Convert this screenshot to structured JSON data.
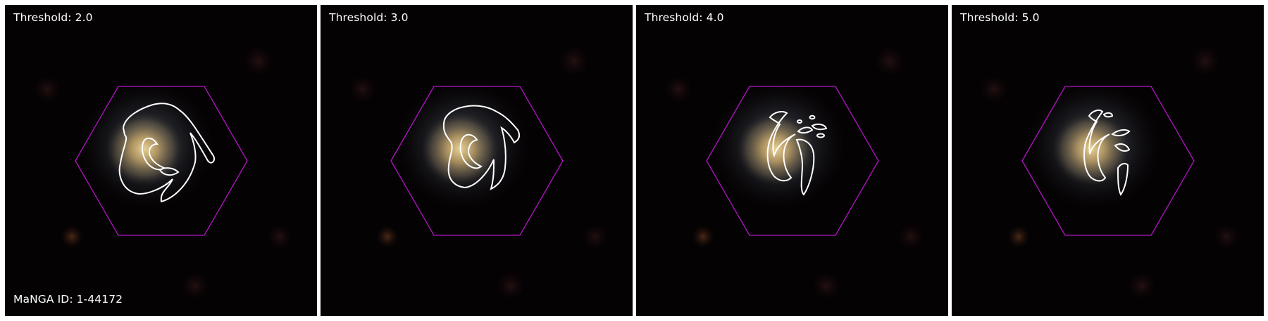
{
  "panels": [
    {
      "threshold_label": "Threshold: 2.0"
    },
    {
      "threshold_label": "Threshold: 3.0"
    },
    {
      "threshold_label": "Threshold: 4.0"
    },
    {
      "threshold_label": "Threshold: 5.0"
    }
  ],
  "manga_id_label": "MaNGA ID: 1-44172",
  "colors": {
    "sky_background": "#050203",
    "galaxy_core": "#c9a86a",
    "galaxy_disk": "#6f7a86",
    "hexagon_outline": "#b414c8",
    "contour_outline": "#ffffff",
    "label_text": "#ffffff"
  }
}
